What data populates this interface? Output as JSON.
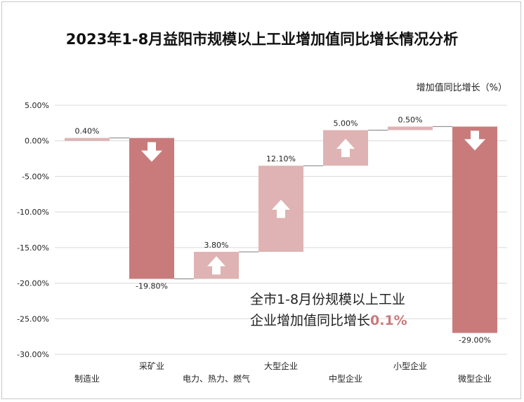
{
  "title": "2023年1-8月益阳市规模以上工业增加值同比增长情况分析",
  "unit_label": "增加值同比增长（%）",
  "note": {
    "line1": "全市1-8月份规模以上工业",
    "line2_prefix": "企业增加值同比增长",
    "line2_highlight": "0.1%"
  },
  "colors": {
    "increase": "#dfb3b3",
    "decrease": "#c97b7b",
    "grid": "#d9d9d9",
    "connector": "#7f7f7f",
    "arrow": "#ffffff"
  },
  "chart_data": {
    "type": "bar",
    "subtype": "waterfall",
    "categories": [
      "制造业",
      "采矿业",
      "电力、热力、燃气",
      "大型企业",
      "中型企业",
      "小型企业",
      "微型企业"
    ],
    "values": [
      0.4,
      -19.8,
      3.8,
      12.1,
      5.0,
      0.5,
      -29.0
    ],
    "data_labels": [
      "0.40%",
      "-19.80%",
      "3.80%",
      "12.10%",
      "5.00%",
      "0.50%",
      "-29.00%"
    ],
    "arrows": [
      "none",
      "down",
      "up",
      "up",
      "up",
      "none",
      "down"
    ],
    "ylim": [
      -30,
      5
    ],
    "yticks": [
      5,
      0,
      -5,
      -10,
      -15,
      -20,
      -25,
      -30
    ],
    "ytick_labels": [
      "5.00%",
      "0.00%",
      "-5.00%",
      "-10.00%",
      "-15.00%",
      "-20.00%",
      "-25.00%",
      "-30.00%"
    ],
    "grid": true
  }
}
